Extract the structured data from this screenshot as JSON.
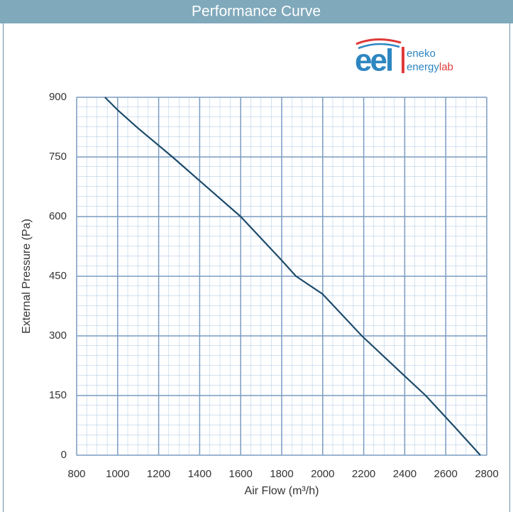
{
  "chart_data": {
    "type": "line",
    "title": "Performance Curve",
    "logo": {
      "mark": "eel",
      "line1": "eneko",
      "line2a": "energy",
      "line2b": "lab"
    },
    "xlabel": "Air Flow (m³/h)",
    "ylabel": "External Pressure (Pa)",
    "x": [
      938,
      1000,
      1100,
      1267,
      1400,
      1600,
      1800,
      1870,
      2000,
      2191,
      2400,
      2502,
      2640,
      2769
    ],
    "values": [
      900,
      868,
      822,
      750,
      690,
      600,
      490,
      450,
      405,
      300,
      199,
      150,
      73,
      0
    ],
    "color": "#1d4b6b",
    "xlim": [
      800,
      2800
    ],
    "xticks": [
      800,
      1000,
      1200,
      1400,
      1600,
      1800,
      2000,
      2200,
      2400,
      2600,
      2800
    ],
    "ylim": [
      0,
      900
    ],
    "yticks": [
      0,
      150,
      300,
      450,
      600,
      750,
      900
    ],
    "grid": true
  }
}
